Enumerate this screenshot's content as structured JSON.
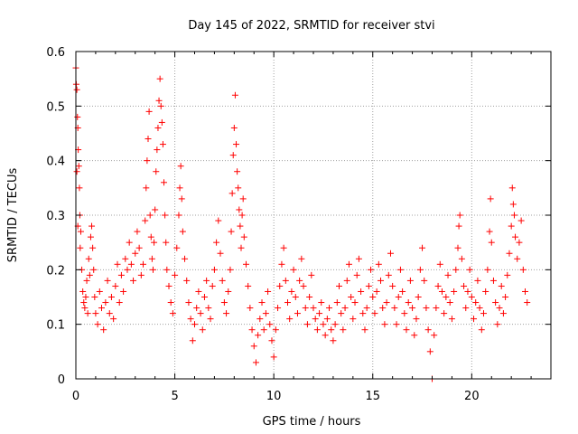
{
  "chart_data": {
    "type": "scatter",
    "title": "Day 145 of 2022, SRMTID for receiver stvi",
    "xlabel": "GPS time / hours",
    "ylabel": "SRMTID / TECUs",
    "xlim": [
      0,
      24
    ],
    "ylim": [
      0,
      0.6
    ],
    "xticks": [
      0,
      5,
      10,
      15,
      20
    ],
    "yticks": [
      0,
      0.1,
      0.2,
      0.3,
      0.4,
      0.5,
      0.6
    ],
    "xtick_labels": [
      "0",
      "5",
      "10",
      "15",
      "20"
    ],
    "ytick_labels": [
      "0",
      "0.1",
      "0.2",
      "0.3",
      "0.4",
      "0.5",
      "0.6"
    ],
    "grid": true,
    "marker": "+",
    "series": [
      {
        "name": "SRMTID",
        "color": "#ff0000",
        "points": [
          [
            0.0,
            0.57
          ],
          [
            0.02,
            0.54
          ],
          [
            0.05,
            0.53
          ],
          [
            0.08,
            0.48
          ],
          [
            0.1,
            0.46
          ],
          [
            0.12,
            0.42
          ],
          [
            0.15,
            0.39
          ],
          [
            0.05,
            0.38
          ],
          [
            0.18,
            0.35
          ],
          [
            0.2,
            0.3
          ],
          [
            0.25,
            0.27
          ],
          [
            0.1,
            0.28
          ],
          [
            0.22,
            0.24
          ],
          [
            0.3,
            0.2
          ],
          [
            0.35,
            0.16
          ],
          [
            0.4,
            0.14
          ],
          [
            0.45,
            0.13
          ],
          [
            0.5,
            0.15
          ],
          [
            0.55,
            0.18
          ],
          [
            0.6,
            0.12
          ],
          [
            0.65,
            0.22
          ],
          [
            0.7,
            0.19
          ],
          [
            0.75,
            0.26
          ],
          [
            0.8,
            0.28
          ],
          [
            0.85,
            0.24
          ],
          [
            0.9,
            0.2
          ],
          [
            0.95,
            0.15
          ],
          [
            1.0,
            0.12
          ],
          [
            1.1,
            0.1
          ],
          [
            1.2,
            0.16
          ],
          [
            1.3,
            0.13
          ],
          [
            1.4,
            0.09
          ],
          [
            1.5,
            0.14
          ],
          [
            1.6,
            0.18
          ],
          [
            1.7,
            0.12
          ],
          [
            1.8,
            0.15
          ],
          [
            1.9,
            0.11
          ],
          [
            2.0,
            0.17
          ],
          [
            2.1,
            0.21
          ],
          [
            2.2,
            0.14
          ],
          [
            2.3,
            0.19
          ],
          [
            2.4,
            0.16
          ],
          [
            2.5,
            0.22
          ],
          [
            2.6,
            0.2
          ],
          [
            2.7,
            0.25
          ],
          [
            2.8,
            0.21
          ],
          [
            2.9,
            0.18
          ],
          [
            3.0,
            0.23
          ],
          [
            3.1,
            0.27
          ],
          [
            3.2,
            0.24
          ],
          [
            3.3,
            0.19
          ],
          [
            3.4,
            0.21
          ],
          [
            3.5,
            0.29
          ],
          [
            3.55,
            0.35
          ],
          [
            3.6,
            0.4
          ],
          [
            3.65,
            0.44
          ],
          [
            3.7,
            0.49
          ],
          [
            3.75,
            0.3
          ],
          [
            3.8,
            0.26
          ],
          [
            3.85,
            0.22
          ],
          [
            3.9,
            0.2
          ],
          [
            3.95,
            0.25
          ],
          [
            4.0,
            0.31
          ],
          [
            4.05,
            0.38
          ],
          [
            4.1,
            0.42
          ],
          [
            4.15,
            0.46
          ],
          [
            4.2,
            0.51
          ],
          [
            4.25,
            0.55
          ],
          [
            4.3,
            0.5
          ],
          [
            4.35,
            0.47
          ],
          [
            4.4,
            0.43
          ],
          [
            4.45,
            0.36
          ],
          [
            4.5,
            0.3
          ],
          [
            4.55,
            0.25
          ],
          [
            4.6,
            0.2
          ],
          [
            4.7,
            0.17
          ],
          [
            4.8,
            0.14
          ],
          [
            4.9,
            0.12
          ],
          [
            5.0,
            0.19
          ],
          [
            5.1,
            0.24
          ],
          [
            5.2,
            0.3
          ],
          [
            5.25,
            0.35
          ],
          [
            5.3,
            0.39
          ],
          [
            5.35,
            0.33
          ],
          [
            5.4,
            0.27
          ],
          [
            5.5,
            0.22
          ],
          [
            5.6,
            0.18
          ],
          [
            5.7,
            0.14
          ],
          [
            5.8,
            0.11
          ],
          [
            5.9,
            0.07
          ],
          [
            6.0,
            0.1
          ],
          [
            6.1,
            0.13
          ],
          [
            6.2,
            0.16
          ],
          [
            6.3,
            0.12
          ],
          [
            6.4,
            0.09
          ],
          [
            6.5,
            0.15
          ],
          [
            6.6,
            0.18
          ],
          [
            6.7,
            0.13
          ],
          [
            6.8,
            0.11
          ],
          [
            6.9,
            0.17
          ],
          [
            7.0,
            0.2
          ],
          [
            7.1,
            0.25
          ],
          [
            7.2,
            0.29
          ],
          [
            7.3,
            0.23
          ],
          [
            7.4,
            0.18
          ],
          [
            7.5,
            0.14
          ],
          [
            7.6,
            0.12
          ],
          [
            7.7,
            0.16
          ],
          [
            7.8,
            0.2
          ],
          [
            7.85,
            0.27
          ],
          [
            7.9,
            0.34
          ],
          [
            7.95,
            0.41
          ],
          [
            8.0,
            0.46
          ],
          [
            8.05,
            0.52
          ],
          [
            8.1,
            0.43
          ],
          [
            8.15,
            0.38
          ],
          [
            8.2,
            0.35
          ],
          [
            8.25,
            0.31
          ],
          [
            8.3,
            0.28
          ],
          [
            8.35,
            0.24
          ],
          [
            8.4,
            0.3
          ],
          [
            8.45,
            0.33
          ],
          [
            8.5,
            0.26
          ],
          [
            8.6,
            0.21
          ],
          [
            8.7,
            0.17
          ],
          [
            8.8,
            0.13
          ],
          [
            8.9,
            0.09
          ],
          [
            9.0,
            0.06
          ],
          [
            9.1,
            0.03
          ],
          [
            9.2,
            0.08
          ],
          [
            9.3,
            0.11
          ],
          [
            9.4,
            0.14
          ],
          [
            9.5,
            0.09
          ],
          [
            9.6,
            0.12
          ],
          [
            9.7,
            0.16
          ],
          [
            9.8,
            0.1
          ],
          [
            9.9,
            0.07
          ],
          [
            10.0,
            0.04
          ],
          [
            10.1,
            0.09
          ],
          [
            10.2,
            0.13
          ],
          [
            10.3,
            0.17
          ],
          [
            10.4,
            0.21
          ],
          [
            10.5,
            0.24
          ],
          [
            10.6,
            0.18
          ],
          [
            10.7,
            0.14
          ],
          [
            10.8,
            0.11
          ],
          [
            10.9,
            0.16
          ],
          [
            11.0,
            0.2
          ],
          [
            11.1,
            0.15
          ],
          [
            11.2,
            0.12
          ],
          [
            11.3,
            0.18
          ],
          [
            11.4,
            0.22
          ],
          [
            11.5,
            0.17
          ],
          [
            11.6,
            0.13
          ],
          [
            11.7,
            0.1
          ],
          [
            11.8,
            0.15
          ],
          [
            11.9,
            0.19
          ],
          [
            12.0,
            0.13
          ],
          [
            12.1,
            0.11
          ],
          [
            12.2,
            0.09
          ],
          [
            12.3,
            0.12
          ],
          [
            12.4,
            0.14
          ],
          [
            12.5,
            0.1
          ],
          [
            12.6,
            0.08
          ],
          [
            12.7,
            0.11
          ],
          [
            12.8,
            0.13
          ],
          [
            12.9,
            0.09
          ],
          [
            13.0,
            0.07
          ],
          [
            13.1,
            0.1
          ],
          [
            13.2,
            0.14
          ],
          [
            13.3,
            0.17
          ],
          [
            13.4,
            0.12
          ],
          [
            13.5,
            0.09
          ],
          [
            13.6,
            0.13
          ],
          [
            13.7,
            0.18
          ],
          [
            13.8,
            0.21
          ],
          [
            13.9,
            0.15
          ],
          [
            14.0,
            0.11
          ],
          [
            14.1,
            0.14
          ],
          [
            14.2,
            0.19
          ],
          [
            14.3,
            0.22
          ],
          [
            14.4,
            0.16
          ],
          [
            14.5,
            0.12
          ],
          [
            14.6,
            0.09
          ],
          [
            14.7,
            0.13
          ],
          [
            14.8,
            0.17
          ],
          [
            14.9,
            0.2
          ],
          [
            15.0,
            0.15
          ],
          [
            15.1,
            0.12
          ],
          [
            15.2,
            0.16
          ],
          [
            15.3,
            0.21
          ],
          [
            15.4,
            0.18
          ],
          [
            15.5,
            0.13
          ],
          [
            15.6,
            0.1
          ],
          [
            15.7,
            0.14
          ],
          [
            15.8,
            0.19
          ],
          [
            15.9,
            0.23
          ],
          [
            16.0,
            0.17
          ],
          [
            16.1,
            0.13
          ],
          [
            16.2,
            0.1
          ],
          [
            16.3,
            0.15
          ],
          [
            16.4,
            0.2
          ],
          [
            16.5,
            0.16
          ],
          [
            16.6,
            0.12
          ],
          [
            16.7,
            0.09
          ],
          [
            16.8,
            0.14
          ],
          [
            16.9,
            0.18
          ],
          [
            17.0,
            0.13
          ],
          [
            17.1,
            0.08
          ],
          [
            17.2,
            0.11
          ],
          [
            17.3,
            0.15
          ],
          [
            17.4,
            0.2
          ],
          [
            17.5,
            0.24
          ],
          [
            17.6,
            0.18
          ],
          [
            17.7,
            0.13
          ],
          [
            17.8,
            0.09
          ],
          [
            17.9,
            0.05
          ],
          [
            18.0,
            0.0
          ],
          [
            18.1,
            0.08
          ],
          [
            18.2,
            0.13
          ],
          [
            18.3,
            0.17
          ],
          [
            18.4,
            0.21
          ],
          [
            18.5,
            0.16
          ],
          [
            18.6,
            0.12
          ],
          [
            18.7,
            0.15
          ],
          [
            18.8,
            0.19
          ],
          [
            18.9,
            0.14
          ],
          [
            19.0,
            0.11
          ],
          [
            19.1,
            0.16
          ],
          [
            19.2,
            0.2
          ],
          [
            19.3,
            0.24
          ],
          [
            19.35,
            0.28
          ],
          [
            19.4,
            0.3
          ],
          [
            19.5,
            0.22
          ],
          [
            19.6,
            0.17
          ],
          [
            19.7,
            0.13
          ],
          [
            19.8,
            0.16
          ],
          [
            19.9,
            0.2
          ],
          [
            20.0,
            0.15
          ],
          [
            20.1,
            0.11
          ],
          [
            20.2,
            0.14
          ],
          [
            20.3,
            0.18
          ],
          [
            20.4,
            0.13
          ],
          [
            20.5,
            0.09
          ],
          [
            20.6,
            0.12
          ],
          [
            20.7,
            0.16
          ],
          [
            20.8,
            0.2
          ],
          [
            20.9,
            0.27
          ],
          [
            20.95,
            0.33
          ],
          [
            21.0,
            0.25
          ],
          [
            21.1,
            0.18
          ],
          [
            21.2,
            0.14
          ],
          [
            21.3,
            0.1
          ],
          [
            21.4,
            0.13
          ],
          [
            21.5,
            0.17
          ],
          [
            21.6,
            0.12
          ],
          [
            21.7,
            0.15
          ],
          [
            21.8,
            0.19
          ],
          [
            21.9,
            0.23
          ],
          [
            22.0,
            0.28
          ],
          [
            22.05,
            0.35
          ],
          [
            22.1,
            0.32
          ],
          [
            22.15,
            0.3
          ],
          [
            22.2,
            0.26
          ],
          [
            22.3,
            0.22
          ],
          [
            22.4,
            0.25
          ],
          [
            22.5,
            0.29
          ],
          [
            22.6,
            0.2
          ],
          [
            22.7,
            0.16
          ],
          [
            22.8,
            0.14
          ]
        ]
      }
    ]
  }
}
